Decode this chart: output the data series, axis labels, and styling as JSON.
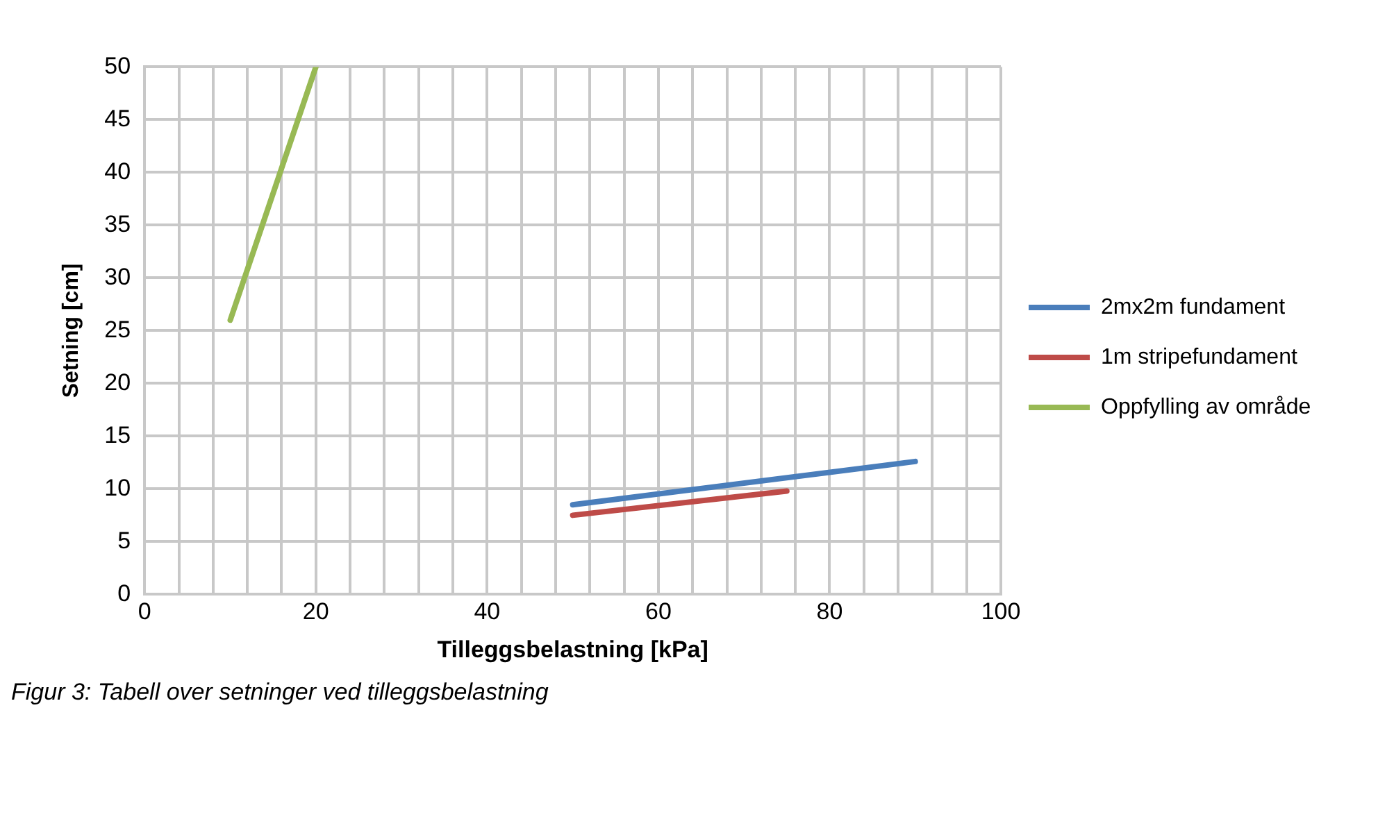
{
  "chart_data": {
    "type": "line",
    "xlabel": "Tilleggsbelastning [kPa]",
    "ylabel": "Setning [cm]",
    "series": [
      {
        "name": "2mx2m fundament",
        "color": "#4a7ebb",
        "x": [
          50,
          90
        ],
        "values": [
          8.5,
          12.6
        ]
      },
      {
        "name": "1m stripefundament",
        "color": "#be4b48",
        "x": [
          50,
          75
        ],
        "values": [
          7.5,
          9.8
        ]
      },
      {
        "name": "Oppfylling av område",
        "color": "#98b954",
        "x": [
          10,
          20
        ],
        "values": [
          26,
          50
        ]
      }
    ],
    "xlim": [
      0,
      100
    ],
    "xticks": [
      0,
      {
        "value": 4,
        "label": null
      },
      {
        "value": 8,
        "label": null
      },
      {
        "value": 12,
        "label": null
      },
      {
        "value": 16,
        "label": null
      },
      20,
      {
        "value": 24,
        "label": null
      },
      {
        "value": 28,
        "label": null
      },
      {
        "value": 32,
        "label": null
      },
      {
        "value": 36,
        "label": null
      },
      40,
      {
        "value": 44,
        "label": null
      },
      {
        "value": 48,
        "label": null
      },
      {
        "value": 52,
        "label": null
      },
      {
        "value": 56,
        "label": null
      },
      60,
      {
        "value": 64,
        "label": null
      },
      {
        "value": 68,
        "label": null
      },
      {
        "value": 72,
        "label": null
      },
      {
        "value": 76,
        "label": null
      },
      80,
      {
        "value": 84,
        "label": null
      },
      {
        "value": 88,
        "label": null
      },
      {
        "value": 92,
        "label": null
      },
      {
        "value": 96,
        "label": null
      },
      100
    ],
    "ylim": [
      0,
      50
    ],
    "yticks": [
      0,
      5,
      10,
      15,
      20,
      25,
      30,
      35,
      40,
      45,
      50
    ],
    "grid": true,
    "legend": "right",
    "marker": "none",
    "line_style": "solid",
    "annotations": [
      "Figur 3: Tabell over setninger ved tilleggsbelastning"
    ]
  }
}
